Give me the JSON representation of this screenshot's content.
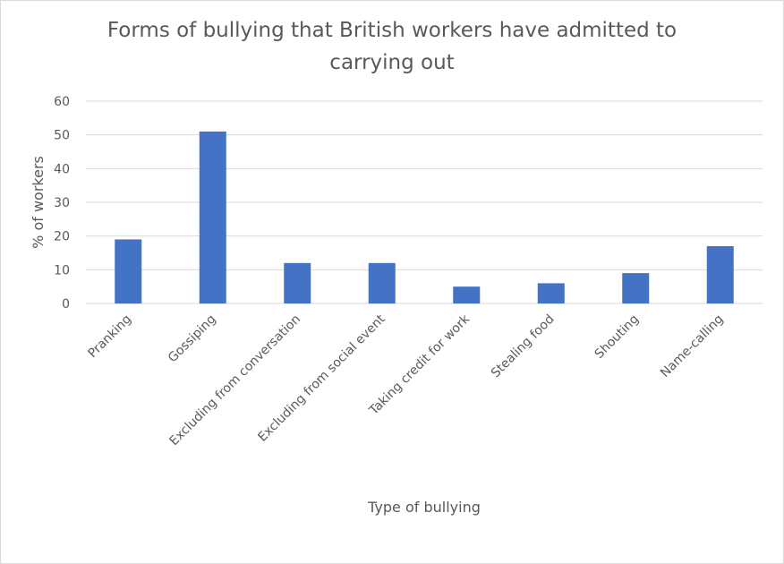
{
  "chart_data": {
    "type": "bar",
    "title": "Forms of bullying that British workers have admitted to carrying out",
    "xlabel": "Type of bullying",
    "ylabel": "% of workers",
    "ylim": [
      0,
      60
    ],
    "yticks": [
      0,
      10,
      20,
      30,
      40,
      50,
      60
    ],
    "categories": [
      "Pranking",
      "Gossiping",
      "Excluding from conversation",
      "Excluding from social event",
      "Taking credit for work",
      "Stealing food",
      "Shouting",
      "Name-calling"
    ],
    "values": [
      19,
      51,
      12,
      12,
      5,
      6,
      9,
      17
    ],
    "grid": true,
    "legend": "none",
    "colors": {
      "bar": "#4472c4",
      "grid": "#d9d9d9",
      "text": "#595959"
    }
  }
}
